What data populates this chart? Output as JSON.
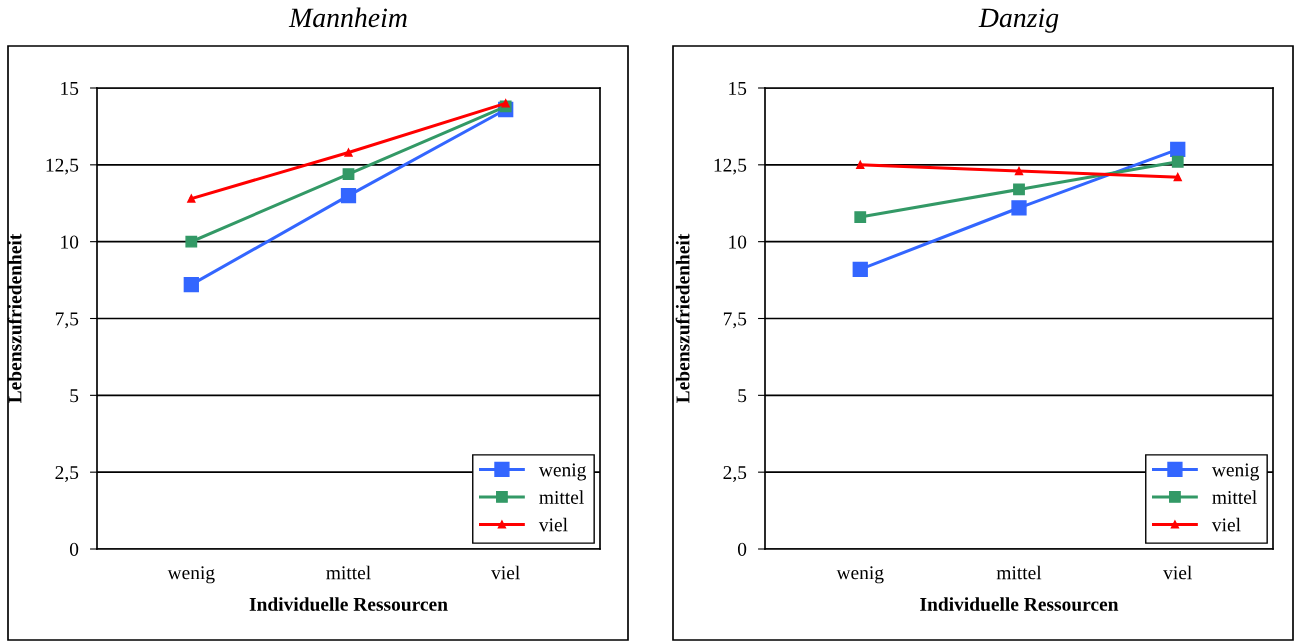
{
  "chart_data": [
    {
      "type": "line",
      "title": "Mannheim",
      "xlabel": "Individuelle Ressourcen",
      "ylabel": "Lebenszufriedenheit",
      "categories": [
        "wenig",
        "mittel",
        "viel"
      ],
      "series": [
        {
          "name": "wenig",
          "color": "#3366ff",
          "values": [
            8.6,
            11.5,
            14.3
          ],
          "marker": "square"
        },
        {
          "name": "mittel",
          "color": "#339966",
          "values": [
            10.0,
            12.2,
            14.4
          ],
          "marker": "square"
        },
        {
          "name": "viel",
          "color": "#ff0000",
          "values": [
            11.4,
            12.9,
            14.5
          ],
          "marker": "triangle"
        }
      ],
      "ylim": [
        0,
        15
      ],
      "yticks": [
        0,
        {
          "value": 2.5,
          "label": "2,5"
        },
        5,
        {
          "value": 7.5,
          "label": "7,5"
        },
        10,
        {
          "value": 12.5,
          "label": "12,5"
        },
        15
      ],
      "grid": "y",
      "legend": "bottom right"
    },
    {
      "type": "line",
      "title": "Danzig",
      "xlabel": "Individuelle Ressourcen",
      "ylabel": "Lebenszufriedenheit",
      "categories": [
        "wenig",
        "mittel",
        "viel"
      ],
      "series": [
        {
          "name": "wenig",
          "color": "#3366ff",
          "values": [
            9.1,
            11.1,
            13.0
          ],
          "marker": "square"
        },
        {
          "name": "mittel",
          "color": "#339966",
          "values": [
            10.8,
            11.7,
            12.6
          ],
          "marker": "square"
        },
        {
          "name": "viel",
          "color": "#ff0000",
          "values": [
            12.5,
            12.3,
            12.1
          ],
          "marker": "triangle"
        }
      ],
      "ylim": [
        0,
        15
      ],
      "yticks": [
        0,
        {
          "value": 2.5,
          "label": "2,5"
        },
        5,
        {
          "value": 7.5,
          "label": "7,5"
        },
        10,
        {
          "value": 12.5,
          "label": "12,5"
        },
        15
      ],
      "grid": "y",
      "legend": "bottom right"
    }
  ]
}
